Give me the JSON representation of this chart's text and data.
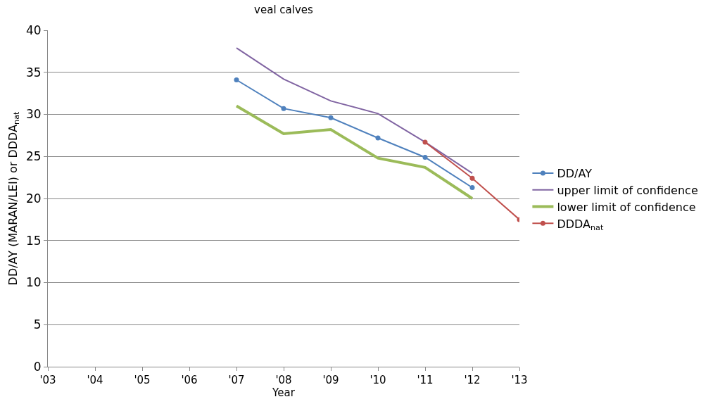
{
  "chart_data": {
    "type": "line",
    "title": "veal calves",
    "xlabel": "Year",
    "ylabel": "DD/AY (MARAN/LEI) or DDDA$_{nat}$",
    "categories": [
      "'03",
      "'04",
      "'05",
      "'06",
      "'07",
      "'08",
      "'09",
      "'10",
      "'11",
      "'12",
      "'13"
    ],
    "series": [
      {
        "name": "DD/AY",
        "color": "#4f81bd",
        "marker": "circle",
        "values": [
          null,
          null,
          null,
          null,
          34.1,
          30.7,
          29.6,
          27.2,
          24.9,
          21.3,
          null
        ]
      },
      {
        "name": "upper limit of confidence",
        "color": "#8064a2",
        "marker": "none",
        "values": [
          null,
          null,
          null,
          null,
          37.9,
          34.2,
          31.6,
          30.1,
          26.7,
          23.0,
          null
        ]
      },
      {
        "name": "lower limit of confidence",
        "color": "#9bbb59",
        "marker": "none",
        "values": [
          null,
          null,
          null,
          null,
          31.0,
          27.7,
          28.2,
          24.8,
          23.7,
          20.0,
          null
        ]
      },
      {
        "name": "DDDA$_{nat}$",
        "color": "#c0504d",
        "marker": "circle",
        "values": [
          null,
          null,
          null,
          null,
          null,
          null,
          null,
          null,
          26.7,
          22.4,
          17.5
        ]
      }
    ],
    "ylim": [
      0,
      40
    ],
    "yticks": [
      0,
      5,
      10,
      15,
      20,
      25,
      30,
      35,
      40
    ],
    "grid": "y",
    "legend": "right",
    "line_style": "solid"
  }
}
